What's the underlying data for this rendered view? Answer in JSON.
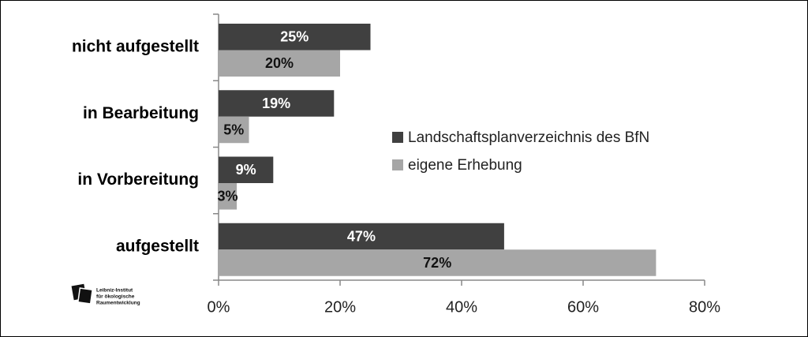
{
  "chart_data": {
    "type": "bar",
    "orientation": "horizontal",
    "categories": [
      "nicht aufgestellt",
      "in Bearbeitung",
      "in Vorbereitung",
      "aufgestellt"
    ],
    "series": [
      {
        "name": "Landschaftsplanverzeichnis des BfN",
        "color": "#404040",
        "values": [
          25,
          19,
          9,
          47
        ],
        "value_labels": [
          "25%",
          "19%",
          "9%",
          "47%"
        ]
      },
      {
        "name": "eigene Erhebung",
        "color": "#a6a6a6",
        "values": [
          20,
          5,
          3,
          72
        ],
        "value_labels": [
          "20%",
          "5%",
          "3%",
          "72%"
        ]
      }
    ],
    "xlim": [
      0,
      80
    ],
    "xticks": [
      {
        "value": 0,
        "label": "0%"
      },
      {
        "value": 20,
        "label": "20%"
      },
      {
        "value": 40,
        "label": "40%"
      },
      {
        "value": 60,
        "label": "60%"
      },
      {
        "value": 80,
        "label": "80%"
      }
    ],
    "legend": "center"
  },
  "logo": {
    "lines": [
      "Leibniz-Institut",
      "für ökologische",
      "Raumentwicklung"
    ]
  }
}
